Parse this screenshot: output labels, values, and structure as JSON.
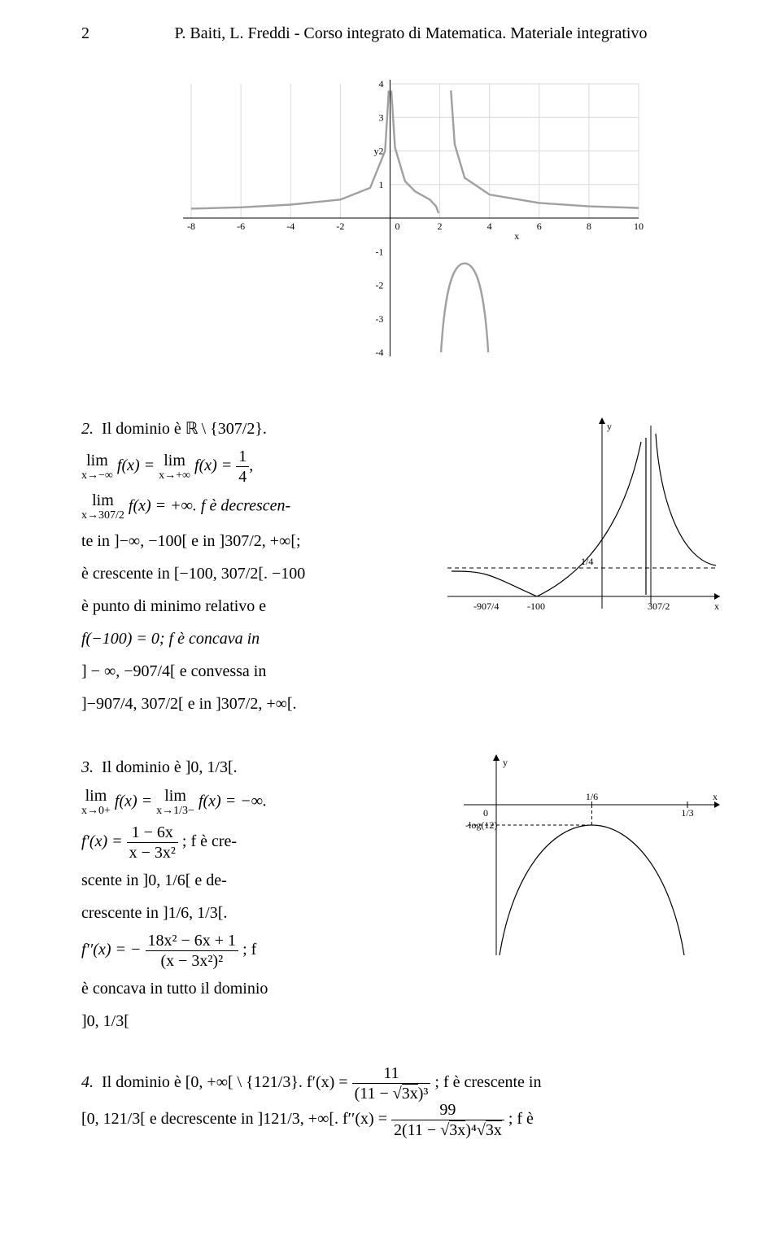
{
  "header": {
    "page_number": "2",
    "title": "P. Baiti, L. Freddi - Corso integrato di Matematica. Materiale integrativo"
  },
  "chart1": {
    "type": "line",
    "x_domain": [
      -8,
      10
    ],
    "y_domain": [
      -4,
      4
    ],
    "x_ticks": [
      -8,
      -6,
      -4,
      -2,
      2,
      4,
      6,
      8,
      10
    ],
    "y_ticks": [
      -4,
      -3,
      -2,
      -1,
      1,
      2,
      3,
      4
    ],
    "x_label": "x",
    "y_label": "y",
    "tick_fontsize": 12,
    "axis_color": "#000000",
    "grid_color": "#d8d8d8",
    "curve_color": "#a0a0a0",
    "curve_width": 2.4,
    "background_color": "#ffffff",
    "zero_label": "0",
    "curves": {
      "upper_left": [
        [
          -8,
          0.28
        ],
        [
          -6,
          0.32
        ],
        [
          -4,
          0.4
        ],
        [
          -2,
          0.55
        ],
        [
          -0.8,
          0.9
        ],
        [
          -0.2,
          2.0
        ],
        [
          -0.05,
          3.8
        ]
      ],
      "upper_right": [
        [
          0.05,
          3.8
        ],
        [
          0.2,
          2.1
        ],
        [
          0.6,
          1.1
        ],
        [
          1.0,
          0.8
        ],
        [
          1.6,
          0.55
        ],
        [
          1.85,
          0.35
        ],
        [
          1.95,
          0.15
        ]
      ],
      "right_tail": [
        [
          2.45,
          3.8
        ],
        [
          2.6,
          2.2
        ],
        [
          3.0,
          1.2
        ],
        [
          4,
          0.7
        ],
        [
          6,
          0.45
        ],
        [
          8,
          0.35
        ],
        [
          10,
          0.3
        ]
      ],
      "lower_lobe": [
        [
          2.05,
          -0.15
        ],
        [
          2.1,
          -1.0
        ],
        [
          2.2,
          -2.0
        ],
        [
          2.3,
          -3.3
        ],
        [
          2.4,
          -3.95
        ],
        [
          2.7,
          -1.6
        ],
        [
          3.0,
          -1.4
        ],
        [
          3.3,
          -1.6
        ],
        [
          3.6,
          -3.95
        ],
        [
          3.7,
          -3.3
        ],
        [
          3.8,
          -2.0
        ],
        [
          3.9,
          -1.0
        ],
        [
          3.95,
          -0.15
        ]
      ]
    }
  },
  "text2": {
    "label": "2.",
    "line1_a": "Il dominio è ",
    "line1_b": " \\ {307/2}.",
    "lim_minf": "x→−∞",
    "lim_pinf": "x→+∞",
    "lim_307": "x→307/2",
    "eq_part": "f(x) = ",
    "frac14_num": "1",
    "frac14_den": "4",
    "comma": ",",
    "pluseq": "f(x) = +∞. f è decrescen-",
    "te": "te in ]−∞, −100[ e in ]307/2, +∞[;",
    "cresc": "è crescente in [−100, 307/2[. −100",
    "min": "è punto di minimo relativo e",
    "conc": "f(−100) = 0; f è concava in",
    "conv": "] − ∞, −907/4[ e convessa in",
    "fin": "]−907/4, 307/2[ e in ]307/2, +∞[."
  },
  "chart2": {
    "type": "line",
    "background_color": "#ffffff",
    "axis_color": "#000000",
    "curve_color": "#000000",
    "curve_width": 1.2,
    "dash_pattern": "5,4",
    "labels": {
      "y": "y",
      "x": "x",
      "quarter": "1/4",
      "m907": "-907/4",
      "m100": "-100",
      "p307": "307/2"
    },
    "label_fontsize": 12
  },
  "text3": {
    "label": "3.",
    "line1": "Il dominio è ]0, 1/3[.",
    "lim0": "x→0+",
    "lim13": "x→1/3−",
    "minf": "f(x) = −∞.",
    "fp": "f′(x) = ",
    "fp_num": "1 − 6x",
    "fp_den": "x − 3x²",
    "fp_tail": "; f è cre-",
    "scente": "scente in ]0, 1/6[ e de-",
    "decresc": "crescente in ]1/6, 1/3[.",
    "fpp": "f′′(x) = −",
    "fpp_num": "18x² − 6x + 1",
    "fpp_den": "(x − 3x²)²",
    "fpp_tail": "; f",
    "conc": "è concava in tutto il dominio",
    "dom": "]0, 1/3["
  },
  "chart3": {
    "type": "line",
    "background_color": "#ffffff",
    "axis_color": "#000000",
    "curve_color": "#000000",
    "curve_width": 1.2,
    "dash_pattern": "4,3",
    "labels": {
      "y": "y",
      "x": "x",
      "zero": "0",
      "onesixth": "1/6",
      "onethird": "1/3",
      "mlog12": "-log(12)"
    },
    "label_fontsize": 12
  },
  "text4": {
    "label": "4.",
    "a": "Il dominio è [0, +∞[ \\ {121/3}. f′(x) = ",
    "frac1_num": "11",
    "frac1_den_a": "(11 − ",
    "frac1_den_b": "3x",
    "frac1_den_c": ")³",
    "b": "; f è crescente in",
    "c": "[0, 121/3[ e decrescente in ]121/3, +∞[. f′′(x) = ",
    "frac2_num": "99",
    "frac2_den_a": "2(11 − ",
    "frac2_den_b": "3x",
    "frac2_den_c": ")⁴",
    "frac2_den_d": "3x",
    "d": "; f è"
  }
}
